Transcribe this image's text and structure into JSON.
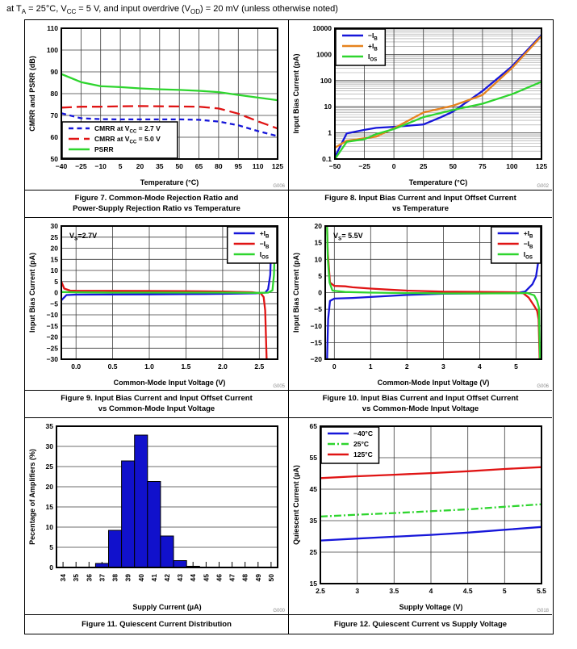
{
  "header": {
    "text": "at T{A} = 25°C, V{CC} = 5 V, and input overdrive (V{OD}) = 20 mV (unless otherwise noted)"
  },
  "chart_data": [
    {
      "id": "figure-7",
      "type": "line",
      "caption_line1": "Figure 7. Common-Mode Rejection Ratio and",
      "caption_line2": "Power-Supply Rejection Ratio vs Temperature",
      "code": "G006",
      "xlabel": "Temperature (°C)",
      "ylabel": "CMRR and PSRR (dB)",
      "xlim": [
        -40,
        125
      ],
      "ylim": [
        50,
        110
      ],
      "xticks": [
        -40,
        -25,
        -10,
        5,
        20,
        35,
        50,
        65,
        80,
        95,
        110,
        125
      ],
      "xtick_labels": [
        "−40",
        "−25",
        "−10",
        "5",
        "20",
        "35",
        "50",
        "65",
        "80",
        "95",
        "110",
        "125"
      ],
      "yticks": [
        50,
        60,
        70,
        80,
        90,
        100,
        110
      ],
      "ytick_labels": [
        "50",
        "60",
        "70",
        "80",
        "90",
        "100",
        "110"
      ],
      "legend_pos": "bottom-left",
      "series": [
        {
          "name": "CMRR at V{CC} = 2.7 V",
          "color": "#1616d9",
          "dash": "6,4.5",
          "points": [
            [
              -40,
              71
            ],
            [
              -25,
              68.7
            ],
            [
              -10,
              68.3
            ],
            [
              5,
              68.2
            ],
            [
              20,
              68.2
            ],
            [
              35,
              68.2
            ],
            [
              50,
              68.2
            ],
            [
              65,
              68
            ],
            [
              80,
              67.2
            ],
            [
              95,
              65.5
            ],
            [
              110,
              62.8
            ],
            [
              125,
              60.5
            ]
          ]
        },
        {
          "name": "CMRR at V{CC} = 5.0 V",
          "color": "#e01414",
          "dash": "13,6",
          "points": [
            [
              -40,
              73.6
            ],
            [
              -25,
              74
            ],
            [
              -10,
              74
            ],
            [
              5,
              74.2
            ],
            [
              20,
              74.3
            ],
            [
              35,
              74.2
            ],
            [
              50,
              74.1
            ],
            [
              65,
              74
            ],
            [
              80,
              73.2
            ],
            [
              95,
              70.8
            ],
            [
              110,
              67.3
            ],
            [
              125,
              64
            ]
          ]
        },
        {
          "name": "PSRR",
          "color": "#2ed52e",
          "dash": "",
          "points": [
            [
              -40,
              89
            ],
            [
              -25,
              85.3
            ],
            [
              -10,
              83.4
            ],
            [
              5,
              83
            ],
            [
              20,
              82.4
            ],
            [
              35,
              82
            ],
            [
              50,
              81.7
            ],
            [
              65,
              81.3
            ],
            [
              80,
              80.7
            ],
            [
              95,
              79.4
            ],
            [
              110,
              78.2
            ],
            [
              125,
              77
            ]
          ]
        }
      ]
    },
    {
      "id": "figure-8",
      "type": "line",
      "ylog": true,
      "caption_line1": "Figure 8. Input Bias Current and Input Offset Current",
      "caption_line2": "vs Temperature",
      "code": "G002",
      "xlabel": "Temperature (°C)",
      "ylabel": "Input Bias Current (pA)",
      "xlim": [
        -50,
        125
      ],
      "ylim": [
        0.1,
        10000
      ],
      "xticks": [
        -50,
        -25,
        0,
        25,
        50,
        75,
        100,
        125
      ],
      "xtick_labels": [
        "−50",
        "−25",
        "0",
        "25",
        "50",
        "75",
        "100",
        "125"
      ],
      "yticks": [
        0.1,
        1,
        10,
        100,
        1000,
        10000
      ],
      "ytick_labels": [
        "0.1",
        "1",
        "10",
        "100",
        "1000",
        "10000"
      ],
      "legend_pos": "top-left",
      "series": [
        {
          "name": "−I{B}",
          "color": "#1616d9",
          "dash": "",
          "points": [
            [
              -50,
              0.12
            ],
            [
              -40,
              0.95
            ],
            [
              -25,
              1.3
            ],
            [
              -15,
              1.55
            ],
            [
              0,
              1.7
            ],
            [
              25,
              2.1
            ],
            [
              40,
              4
            ],
            [
              50,
              6.5
            ],
            [
              75,
              40
            ],
            [
              100,
              350
            ],
            [
              125,
              5500
            ]
          ]
        },
        {
          "name": "+I{B}",
          "color": "#e6821e",
          "dash": "",
          "points": [
            [
              -50,
              0.27
            ],
            [
              -40,
              0.5
            ],
            [
              -25,
              0.62
            ],
            [
              -15,
              0.72
            ],
            [
              0,
              1.5
            ],
            [
              25,
              6
            ],
            [
              50,
              11
            ],
            [
              70,
              23
            ],
            [
              75,
              28
            ],
            [
              100,
              300
            ],
            [
              125,
              5000
            ]
          ]
        },
        {
          "name": "I{OS}",
          "color": "#2ed52e",
          "dash": "",
          "points": [
            [
              -50,
              0.1
            ],
            [
              -40,
              0.45
            ],
            [
              -25,
              0.57
            ],
            [
              -15,
              0.9
            ],
            [
              0,
              1.4
            ],
            [
              25,
              4
            ],
            [
              50,
              7.5
            ],
            [
              75,
              13
            ],
            [
              100,
              30
            ],
            [
              125,
              90
            ]
          ]
        }
      ]
    },
    {
      "id": "figure-9",
      "type": "line",
      "caption_line1": "Figure 9. Input Bias Current and Input Offset Current",
      "caption_line2": "vs Common-Mode Input Voltage",
      "code": "G005",
      "annotation": "V{S}=2.7V",
      "xlabel": "Common-Mode Input Voltage (V)",
      "ylabel": "Input Bias Current (pA)",
      "xlim": [
        -0.2,
        2.75
      ],
      "ylim": [
        -30,
        30
      ],
      "xticks": [
        0,
        0.5,
        1,
        1.5,
        2,
        2.5
      ],
      "xtick_labels": [
        "0.0",
        "0.5",
        "1.0",
        "1.5",
        "2.0",
        "2.5"
      ],
      "yticks": [
        -30,
        -25,
        -20,
        -15,
        -10,
        -5,
        0,
        5,
        10,
        15,
        20,
        25,
        30
      ],
      "ytick_labels": [
        "−30",
        "−25",
        "−20",
        "−15",
        "−10",
        "−5",
        "0",
        "5",
        "10",
        "15",
        "20",
        "25",
        "30"
      ],
      "legend_pos": "top-right",
      "series": [
        {
          "name": "+I{B}",
          "color": "#1616d9",
          "dash": "",
          "points": [
            [
              -0.2,
              -3.5
            ],
            [
              -0.13,
              -1.1
            ],
            [
              0,
              -0.9
            ],
            [
              0.5,
              -0.85
            ],
            [
              1,
              -0.8
            ],
            [
              1.5,
              -0.7
            ],
            [
              2,
              -0.55
            ],
            [
              2.45,
              -0.3
            ],
            [
              2.58,
              0
            ],
            [
              2.62,
              1.5
            ],
            [
              2.65,
              8
            ],
            [
              2.67,
              30
            ]
          ]
        },
        {
          "name": "−I{B}",
          "color": "#e01414",
          "dash": "",
          "points": [
            [
              -0.2,
              5
            ],
            [
              -0.16,
              1.8
            ],
            [
              -0.08,
              0.9
            ],
            [
              0,
              0.85
            ],
            [
              0.5,
              0.8
            ],
            [
              1,
              0.75
            ],
            [
              1.5,
              0.65
            ],
            [
              2,
              0.5
            ],
            [
              2.4,
              0.2
            ],
            [
              2.52,
              -0.3
            ],
            [
              2.56,
              -2
            ],
            [
              2.58,
              -8
            ],
            [
              2.6,
              -30
            ]
          ]
        },
        {
          "name": "I{OS}",
          "color": "#2ed52e",
          "dash": "",
          "points": [
            [
              -0.2,
              0.3
            ],
            [
              0,
              0.1
            ],
            [
              0.5,
              0
            ],
            [
              1,
              0
            ],
            [
              1.5,
              0
            ],
            [
              2,
              0
            ],
            [
              2.5,
              -0.1
            ],
            [
              2.62,
              0
            ],
            [
              2.68,
              1
            ],
            [
              2.7,
              8
            ],
            [
              2.72,
              30
            ]
          ]
        }
      ]
    },
    {
      "id": "figure-10",
      "type": "line",
      "caption_line1": "Figure 10. Input Bias Current and Input Offset Current",
      "caption_line2": "vs Common-Mode Input Voltage",
      "code": "G006",
      "annotation": "V{S}= 5.5V",
      "xlabel": "Common-Mode Input Voltage (V)",
      "ylabel": "Input Bias Current (pA)",
      "xlim": [
        -0.25,
        5.7
      ],
      "ylim": [
        -20,
        20
      ],
      "xticks": [
        0,
        1,
        2,
        3,
        4,
        5
      ],
      "xtick_labels": [
        "0",
        "1",
        "2",
        "3",
        "4",
        "5"
      ],
      "yticks": [
        -20,
        -15,
        -10,
        -5,
        0,
        5,
        10,
        15,
        20
      ],
      "ytick_labels": [
        "−20",
        "−15",
        "−10",
        "−5",
        "0",
        "5",
        "10",
        "15",
        "20"
      ],
      "legend_pos": "top-right",
      "series": [
        {
          "name": "+I{B}",
          "color": "#1616d9",
          "dash": "",
          "points": [
            [
              -0.2,
              -20
            ],
            [
              -0.17,
              -8
            ],
            [
              -0.12,
              -2.5
            ],
            [
              0,
              -1.8
            ],
            [
              0.5,
              -1.6
            ],
            [
              1,
              -1.3
            ],
            [
              1.5,
              -1
            ],
            [
              2,
              -0.7
            ],
            [
              2.5,
              -0.5
            ],
            [
              3,
              -0.35
            ],
            [
              4,
              -0.25
            ],
            [
              5,
              -0.15
            ],
            [
              5.25,
              0.3
            ],
            [
              5.45,
              2.5
            ],
            [
              5.55,
              4.8
            ],
            [
              5.62,
              10
            ],
            [
              5.66,
              20
            ]
          ]
        },
        {
          "name": "−I{B}",
          "color": "#e01414",
          "dash": "",
          "points": [
            [
              -0.2,
              20
            ],
            [
              -0.18,
              12
            ],
            [
              -0.12,
              3
            ],
            [
              0,
              2
            ],
            [
              0.3,
              1.9
            ],
            [
              0.5,
              1.6
            ],
            [
              1,
              1.2
            ],
            [
              1.5,
              0.9
            ],
            [
              2,
              0.6
            ],
            [
              2.5,
              0.45
            ],
            [
              3,
              0.3
            ],
            [
              4,
              0.2
            ],
            [
              5,
              0.1
            ],
            [
              5.2,
              -0.2
            ],
            [
              5.35,
              -1.5
            ],
            [
              5.5,
              -4
            ],
            [
              5.58,
              -5.5
            ],
            [
              5.62,
              -8
            ],
            [
              5.65,
              -20
            ]
          ]
        },
        {
          "name": "I{OS}",
          "color": "#2ed52e",
          "dash": "",
          "points": [
            [
              -0.2,
              20
            ],
            [
              -0.18,
              10
            ],
            [
              -0.13,
              3
            ],
            [
              -0.05,
              0.6
            ],
            [
              0.3,
              0.2
            ],
            [
              1,
              0
            ],
            [
              2,
              -0.15
            ],
            [
              3,
              -0.25
            ],
            [
              4,
              -0.25
            ],
            [
              5,
              -0.2
            ],
            [
              5.3,
              -0.1
            ],
            [
              5.5,
              -0.8
            ],
            [
              5.58,
              -2.5
            ],
            [
              5.63,
              -4.5
            ],
            [
              5.66,
              -20
            ]
          ]
        }
      ]
    },
    {
      "id": "figure-11",
      "type": "bar",
      "caption_line1": "Figure 11. Quiescent Current Distribution",
      "caption_line2": "",
      "code": "G000",
      "xlabel": "Supply Current (µA)",
      "ylabel": "Pecentage of Amplifiers (%)",
      "bar_color": "#1111cc",
      "rotate_xticks": true,
      "categories": [
        "34",
        "35",
        "36",
        "37",
        "38",
        "39",
        "40",
        "41",
        "42",
        "43",
        "44",
        "45",
        "46",
        "47",
        "48",
        "49",
        "50"
      ],
      "values": [
        0,
        0,
        0,
        1,
        9.2,
        26.4,
        32.8,
        21.3,
        7.8,
        1.7,
        0.3,
        0,
        0,
        0,
        0,
        0,
        0
      ],
      "ylim": [
        0,
        35
      ],
      "yticks": [
        0,
        5,
        10,
        15,
        20,
        25,
        30,
        35
      ],
      "ytick_labels": [
        "0",
        "5",
        "10",
        "15",
        "20",
        "25",
        "30",
        "35"
      ]
    },
    {
      "id": "figure-12",
      "type": "line",
      "caption_line1": "Figure 12. Quiescent Current vs Supply Voltage",
      "caption_line2": "",
      "code": "G018",
      "xlabel": "Supply Voltage (V)",
      "ylabel": "Quiescent Current (µA)",
      "xlim": [
        2.5,
        5.5
      ],
      "ylim": [
        15,
        65
      ],
      "xticks": [
        2.5,
        3,
        3.5,
        4,
        4.5,
        5,
        5.5
      ],
      "xtick_labels": [
        "2.5",
        "3",
        "3.5",
        "4",
        "4.5",
        "5",
        "5.5"
      ],
      "yticks": [
        15,
        25,
        35,
        45,
        55,
        65
      ],
      "ytick_labels": [
        "15",
        "25",
        "35",
        "45",
        "55",
        "65"
      ],
      "legend_pos": "top-left",
      "series": [
        {
          "name": "−40°C",
          "color": "#1616d9",
          "dash": "",
          "points": [
            [
              2.5,
              28.7
            ],
            [
              3,
              29.3
            ],
            [
              3.5,
              29.9
            ],
            [
              4,
              30.5
            ],
            [
              4.5,
              31.2
            ],
            [
              5,
              32.1
            ],
            [
              5.5,
              33
            ]
          ]
        },
        {
          "name": "25°C",
          "color": "#2ed52e",
          "dash": "9,3,2,3",
          "points": [
            [
              2.5,
              36.3
            ],
            [
              3,
              36.9
            ],
            [
              3.5,
              37.4
            ],
            [
              4,
              38
            ],
            [
              4.5,
              38.6
            ],
            [
              5,
              39.4
            ],
            [
              5.5,
              40.2
            ]
          ]
        },
        {
          "name": "125°C",
          "color": "#e01414",
          "dash": "",
          "points": [
            [
              2.5,
              48.5
            ],
            [
              3,
              49.1
            ],
            [
              3.5,
              49.6
            ],
            [
              4,
              50.1
            ],
            [
              4.5,
              50.7
            ],
            [
              5,
              51.4
            ],
            [
              5.5,
              52
            ]
          ]
        }
      ]
    }
  ]
}
